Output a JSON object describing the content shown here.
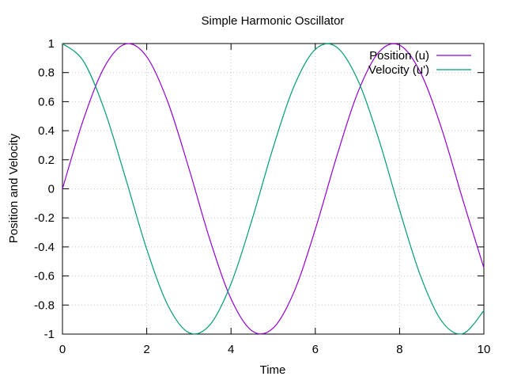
{
  "chart_data": {
    "type": "line",
    "title": "Simple Harmonic Oscillator",
    "xlabel": "Time",
    "ylabel": "Position and Velocity",
    "xlim": [
      0,
      10
    ],
    "ylim": [
      -1,
      1
    ],
    "x_ticks": [
      0,
      2,
      4,
      6,
      8,
      10
    ],
    "x_tick_labels": [
      "0",
      "2",
      "4",
      "6",
      "8",
      "10"
    ],
    "y_ticks": [
      -1,
      -0.8,
      -0.6,
      -0.4,
      -0.2,
      0,
      0.2,
      0.4,
      0.6,
      0.8,
      1
    ],
    "y_tick_labels": [
      "-1",
      "-0.8",
      "-0.6",
      "-0.4",
      "-0.2",
      "0",
      "0.2",
      "0.4",
      "0.6",
      "0.8",
      "1"
    ],
    "grid": true,
    "legend_position": "top-right",
    "x": [
      0,
      0.5,
      1,
      1.5,
      2,
      2.5,
      3,
      3.5,
      4,
      4.5,
      5,
      5.5,
      6,
      6.5,
      7,
      7.5,
      8,
      8.5,
      9,
      9.5,
      10
    ],
    "series": [
      {
        "name": "Position (u)",
        "color": "#9400d3",
        "values": [
          0,
          0.479,
          0.841,
          0.997,
          0.909,
          0.598,
          0.141,
          -0.351,
          -0.757,
          -0.978,
          -0.959,
          -0.706,
          -0.279,
          0.215,
          0.657,
          0.938,
          0.989,
          0.798,
          0.412,
          -0.075,
          -0.544
        ]
      },
      {
        "name": "Velocity (u')",
        "color": "#009e73",
        "values": [
          1,
          0.878,
          0.54,
          0.071,
          -0.416,
          -0.801,
          -0.99,
          -0.936,
          -0.654,
          -0.211,
          0.284,
          0.709,
          0.96,
          0.977,
          0.754,
          0.347,
          -0.146,
          -0.602,
          -0.911,
          -0.997,
          -0.839
        ]
      }
    ]
  }
}
